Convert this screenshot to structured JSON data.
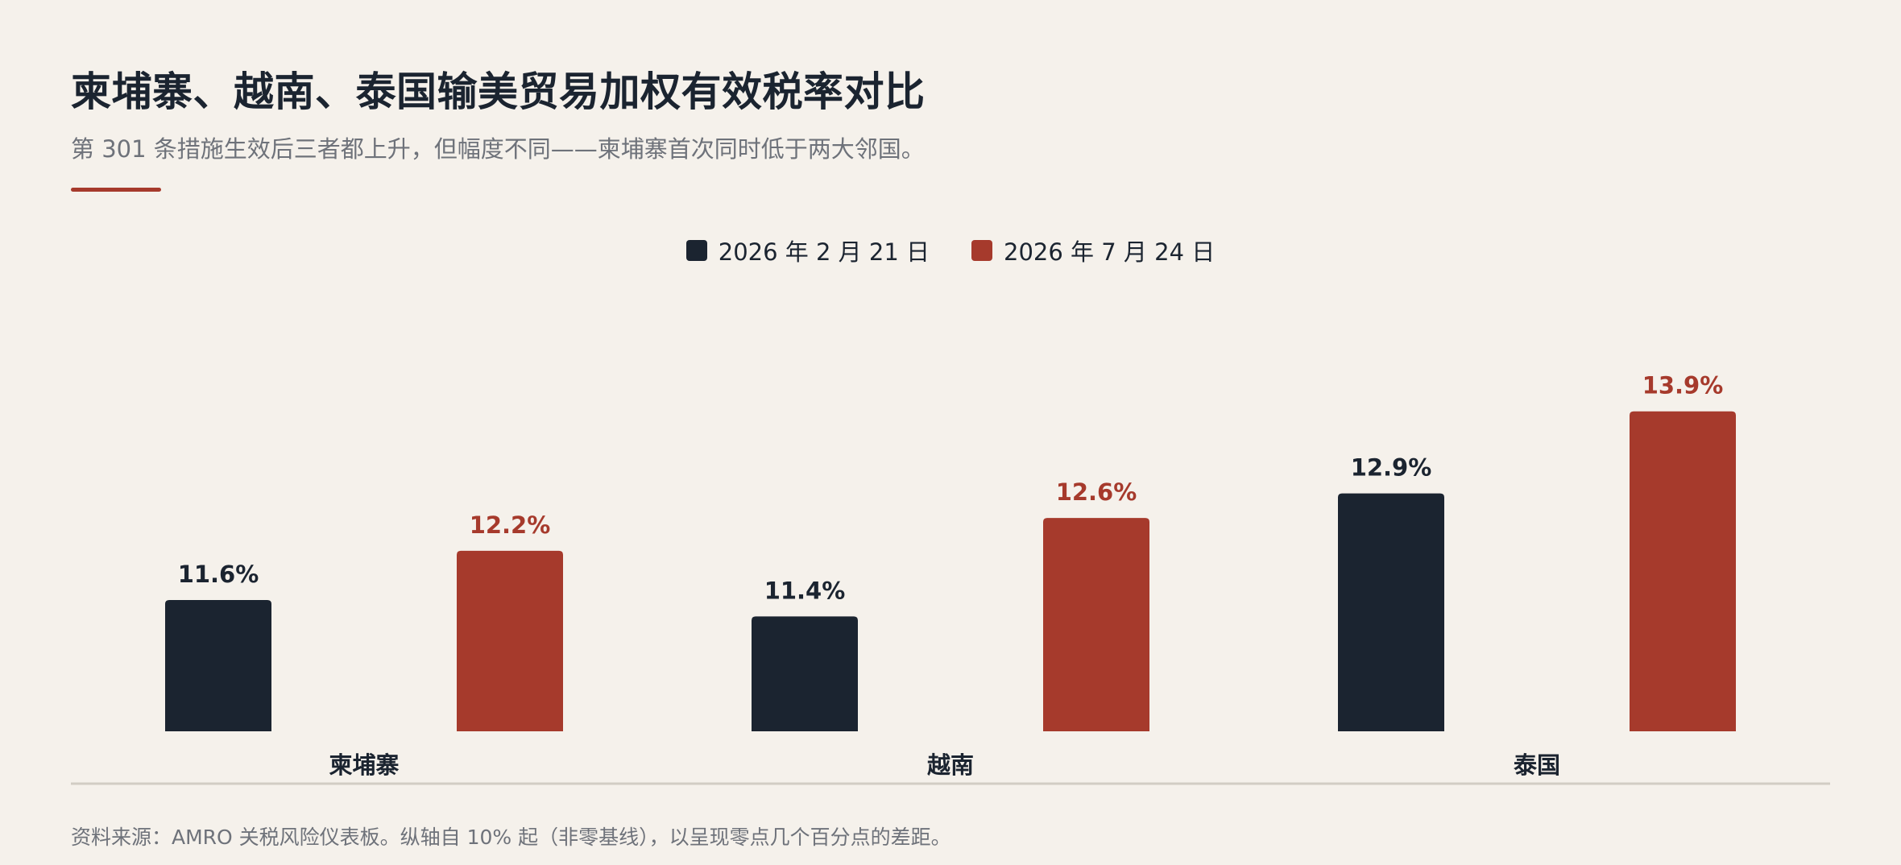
{
  "title": "柬埔寨、越南、泰国输美贸易加权有效税率对比",
  "subtitle": "第 301 条措施生效后三者都上升，但幅度不同——柬埔寨首次同时低于两大邻国。",
  "source": "资料来源：AMRO 关税风险仪表板。纵轴自 10% 起（非零基线），以呈现零点几个百分点的差距。",
  "colors": {
    "series_1": "#1b2430",
    "series_2": "#a63a2c",
    "background": "#f5f1eb",
    "axis": "#d2cdc4"
  },
  "chart_data": {
    "type": "bar",
    "title": "柬埔寨、越南、泰国输美贸易加权有效税率对比",
    "subtitle": "第 301 条措施生效后三者都上升，但幅度不同——柬埔寨首次同时低于两大邻国。",
    "categories": [
      "柬埔寨",
      "越南",
      "泰国"
    ],
    "series": [
      {
        "name": "2026 年 2 月 21 日",
        "values": [
          11.6,
          11.4,
          12.9
        ],
        "labels": [
          "11.6%",
          "11.4%",
          "12.9%"
        ]
      },
      {
        "name": "2026 年 7 月 24 日",
        "values": [
          12.2,
          12.6,
          13.9
        ],
        "labels": [
          "12.2%",
          "12.6%",
          "13.9%"
        ]
      }
    ],
    "ylim": [
      10,
      14.3
    ],
    "unit": "%",
    "xlabel": "",
    "ylabel": "",
    "grid": false,
    "legend": "top-center"
  }
}
